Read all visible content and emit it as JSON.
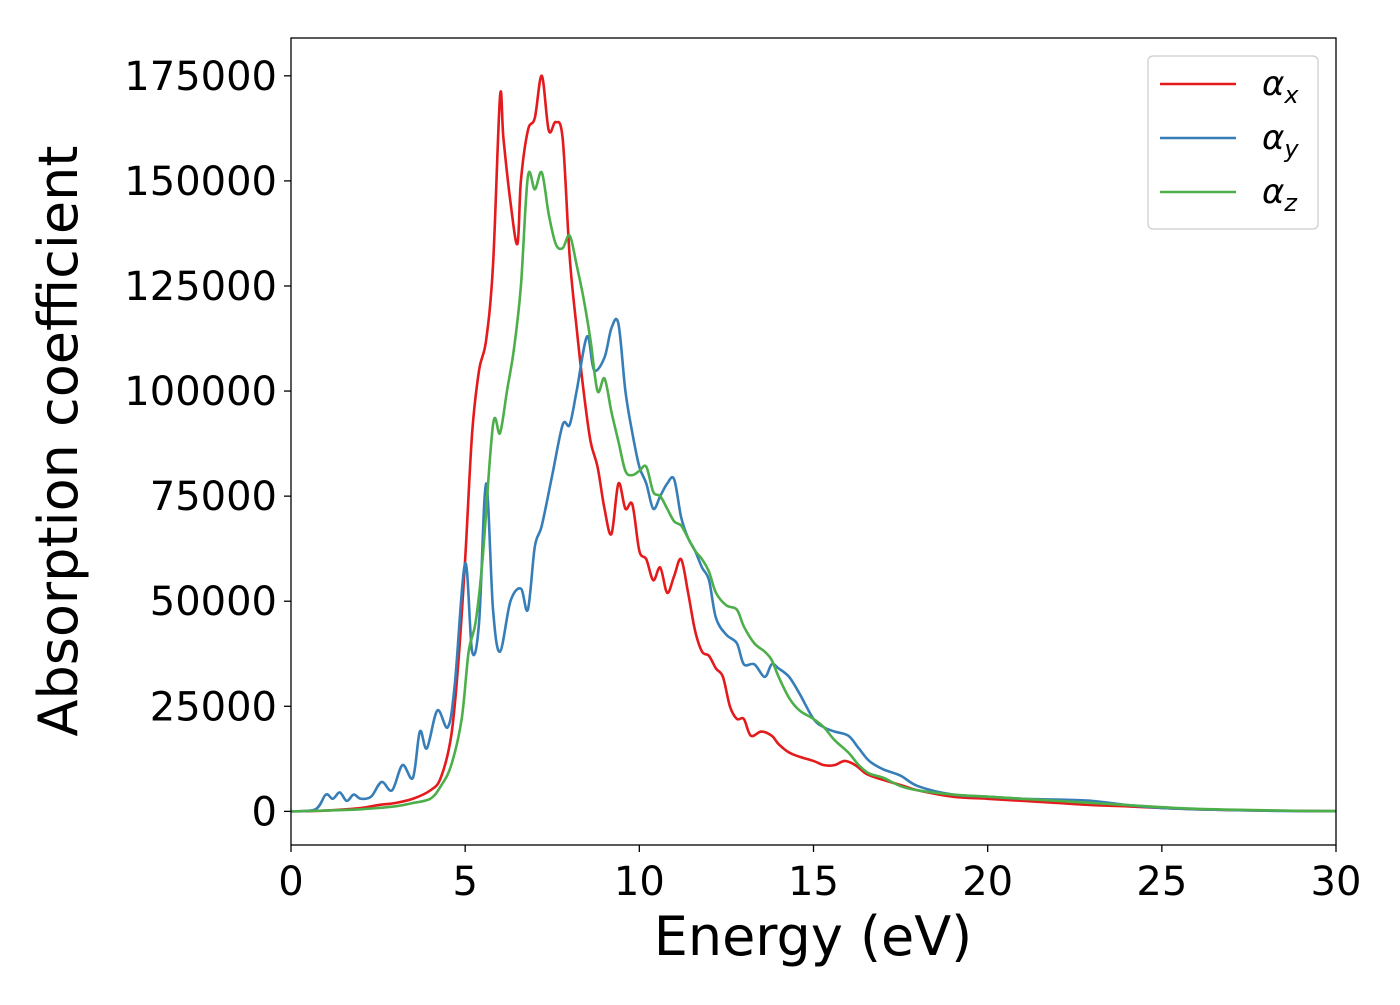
{
  "chart_data": {
    "type": "line",
    "title": "",
    "xlabel": "Energy (eV)",
    "ylabel": "Absorption coefficient",
    "xlim": [
      0,
      30
    ],
    "ylim": [
      -8000,
      184000
    ],
    "xticks": [
      0,
      5,
      10,
      15,
      20,
      25,
      30
    ],
    "yticks": [
      0,
      25000,
      50000,
      75000,
      100000,
      125000,
      150000,
      175000
    ],
    "grid": false,
    "legend": {
      "position": "top-right"
    },
    "series": [
      {
        "name": "αx",
        "symbol": "α",
        "subscript": "x",
        "color": "#e41a1c",
        "x": [
          0,
          1,
          2,
          2.5,
          3,
          3.5,
          4,
          4.3,
          4.6,
          4.8,
          5.0,
          5.2,
          5.4,
          5.6,
          5.8,
          6.0,
          6.1,
          6.3,
          6.5,
          6.6,
          6.8,
          7.0,
          7.2,
          7.4,
          7.6,
          7.8,
          8.0,
          8.2,
          8.4,
          8.6,
          8.8,
          9.0,
          9.2,
          9.4,
          9.6,
          9.8,
          10.0,
          10.2,
          10.4,
          10.6,
          10.8,
          11.0,
          11.2,
          11.4,
          11.6,
          11.8,
          12.0,
          12.2,
          12.4,
          12.6,
          12.8,
          13.0,
          13.2,
          13.5,
          13.8,
          14.0,
          14.3,
          14.6,
          15.0,
          15.3,
          15.6,
          15.9,
          16.2,
          16.5,
          16.8,
          17.2,
          17.6,
          18,
          19,
          20,
          21,
          22,
          23,
          24,
          25,
          26,
          27,
          28,
          29,
          30
        ],
        "y": [
          0,
          200,
          800,
          1500,
          2000,
          3000,
          5000,
          8000,
          18000,
          35000,
          60000,
          90000,
          105000,
          112000,
          130000,
          170000,
          160000,
          145000,
          135000,
          150000,
          162000,
          165000,
          175000,
          162000,
          164000,
          160000,
          132000,
          115000,
          100000,
          88000,
          82000,
          72000,
          66000,
          78000,
          72000,
          73000,
          62000,
          60000,
          55000,
          58000,
          52000,
          56000,
          60000,
          52000,
          43000,
          38000,
          37000,
          34000,
          32000,
          25000,
          22000,
          22000,
          18000,
          19000,
          18000,
          16000,
          14000,
          13000,
          12000,
          11000,
          11000,
          12000,
          11000,
          9000,
          8000,
          7000,
          6000,
          5000,
          3500,
          3000,
          2500,
          2000,
          1500,
          1200,
          800,
          500,
          300,
          200,
          100,
          50
        ]
      },
      {
        "name": "αy",
        "symbol": "α",
        "subscript": "y",
        "color": "#377eb8",
        "x": [
          0,
          0.7,
          1.0,
          1.2,
          1.4,
          1.6,
          1.8,
          2.0,
          2.3,
          2.6,
          2.9,
          3.2,
          3.5,
          3.7,
          3.9,
          4.2,
          4.5,
          4.7,
          5.0,
          5.2,
          5.4,
          5.6,
          5.8,
          6.0,
          6.3,
          6.6,
          6.8,
          7.0,
          7.2,
          7.5,
          7.8,
          8.0,
          8.2,
          8.5,
          8.7,
          9.0,
          9.2,
          9.4,
          9.6,
          9.8,
          10.0,
          10.2,
          10.4,
          10.6,
          10.8,
          11.0,
          11.2,
          11.4,
          11.6,
          11.8,
          12.0,
          12.2,
          12.5,
          12.8,
          13.0,
          13.3,
          13.6,
          13.8,
          14.0,
          14.3,
          14.6,
          15.0,
          15.3,
          15.6,
          16.0,
          16.3,
          16.6,
          17.0,
          17.5,
          18,
          19,
          20,
          21,
          22,
          23,
          24,
          25,
          26,
          27,
          28,
          29,
          30
        ],
        "y": [
          0,
          500,
          4000,
          3000,
          4500,
          2500,
          4000,
          3000,
          3500,
          7000,
          5000,
          11000,
          8000,
          19000,
          15000,
          24000,
          20000,
          30000,
          59000,
          38000,
          45000,
          78000,
          48000,
          38000,
          50000,
          53000,
          48000,
          63000,
          68000,
          80000,
          92000,
          92000,
          100000,
          113000,
          105000,
          108000,
          115000,
          116000,
          100000,
          90000,
          82000,
          78000,
          72000,
          75000,
          78000,
          79000,
          70000,
          65000,
          62000,
          58000,
          55000,
          46000,
          42000,
          40000,
          35000,
          35000,
          32000,
          35000,
          34000,
          32000,
          28000,
          22000,
          20000,
          19000,
          18000,
          15000,
          12000,
          10000,
          8500,
          6000,
          4000,
          3500,
          3000,
          2800,
          2500,
          1500,
          800,
          500,
          300,
          150,
          80,
          40
        ]
      },
      {
        "name": "αz",
        "symbol": "α",
        "subscript": "z",
        "color": "#4daf4a",
        "x": [
          0,
          1,
          2,
          3,
          3.5,
          4,
          4.3,
          4.6,
          4.9,
          5.1,
          5.3,
          5.5,
          5.8,
          6.0,
          6.2,
          6.4,
          6.6,
          6.8,
          7.0,
          7.2,
          7.4,
          7.6,
          7.8,
          8.0,
          8.2,
          8.4,
          8.6,
          8.8,
          9.0,
          9.2,
          9.4,
          9.6,
          9.8,
          10.0,
          10.2,
          10.4,
          10.6,
          10.8,
          11.0,
          11.2,
          11.4,
          11.6,
          11.8,
          12.0,
          12.2,
          12.5,
          12.8,
          13.0,
          13.3,
          13.6,
          13.8,
          14.0,
          14.3,
          14.6,
          15.0,
          15.3,
          15.6,
          16.0,
          16.3,
          16.6,
          17.0,
          17.5,
          18,
          19,
          20,
          21,
          22,
          23,
          24,
          25,
          26,
          27,
          28,
          29,
          30
        ],
        "y": [
          0,
          200,
          500,
          1200,
          2000,
          3000,
          6000,
          11000,
          22000,
          38000,
          45000,
          60000,
          92000,
          90000,
          100000,
          110000,
          125000,
          151000,
          148000,
          152000,
          142000,
          135000,
          134000,
          137000,
          130000,
          122000,
          112000,
          100000,
          103000,
          95000,
          88000,
          81000,
          80000,
          81000,
          82000,
          76000,
          75000,
          72000,
          69000,
          68000,
          65000,
          62000,
          60000,
          57000,
          52000,
          49000,
          48000,
          44000,
          40000,
          38000,
          36000,
          32000,
          27000,
          24000,
          22000,
          20000,
          17000,
          14000,
          11000,
          9000,
          8000,
          6000,
          5000,
          4000,
          3500,
          3000,
          2500,
          2000,
          1500,
          1000,
          600,
          400,
          250,
          120,
          60
        ]
      }
    ]
  }
}
